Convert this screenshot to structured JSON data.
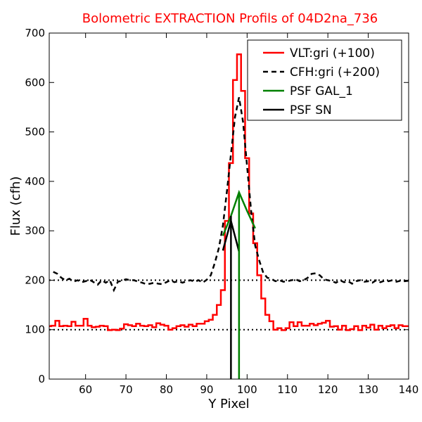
{
  "chart_data": {
    "type": "line",
    "title": "Bolometric EXTRACTION Profils of 04D2na_736",
    "title_color": "#ff0000",
    "xlabel": "Y Pixel",
    "ylabel": "Flux (cfh)",
    "xlim": [
      51,
      140
    ],
    "ylim": [
      0,
      700
    ],
    "xticks": [
      60,
      70,
      80,
      90,
      100,
      110,
      120,
      130,
      140
    ],
    "yticks": [
      0,
      100,
      200,
      300,
      400,
      500,
      600,
      700
    ],
    "grid": false,
    "legend_position": "top-right",
    "reference_lines": [
      {
        "y": 100,
        "style": "dotted",
        "color": "#000000"
      },
      {
        "y": 200,
        "style": "dotted",
        "color": "#000000"
      }
    ],
    "series": [
      {
        "name": "VLT:gri (+100)",
        "color": "#ff0000",
        "style": "steps",
        "x": [
          51,
          52,
          53,
          54,
          55,
          56,
          57,
          58,
          59,
          60,
          61,
          62,
          63,
          64,
          65,
          66,
          67,
          68,
          69,
          70,
          71,
          72,
          73,
          74,
          75,
          76,
          77,
          78,
          79,
          80,
          81,
          82,
          83,
          84,
          85,
          86,
          87,
          88,
          89,
          90,
          91,
          92,
          93,
          94,
          95,
          96,
          97,
          98,
          99,
          100,
          101,
          102,
          103,
          104,
          105,
          106,
          107,
          108,
          109,
          110,
          111,
          112,
          113,
          114,
          115,
          116,
          117,
          118,
          119,
          120,
          121,
          122,
          123,
          124,
          125,
          126,
          127,
          128,
          129,
          130,
          131,
          132,
          133,
          134,
          135,
          136,
          137,
          138,
          139,
          140
        ],
        "y": [
          107,
          108,
          118,
          107,
          108,
          107,
          116,
          108,
          108,
          122,
          108,
          105,
          106,
          108,
          107,
          99,
          100,
          99,
          102,
          111,
          109,
          107,
          112,
          108,
          107,
          109,
          105,
          113,
          110,
          108,
          100,
          103,
          107,
          109,
          106,
          110,
          107,
          112,
          112,
          117,
          120,
          130,
          150,
          180,
          320,
          437,
          605,
          657,
          583,
          447,
          335,
          275,
          210,
          163,
          130,
          117,
          100,
          103,
          99,
          103,
          115,
          107,
          115,
          108,
          108,
          112,
          109,
          112,
          114,
          118,
          106,
          107,
          100,
          108,
          99,
          101,
          107,
          99,
          108,
          104,
          110,
          100,
          108,
          103,
          107,
          109,
          103,
          109,
          107,
          107
        ]
      },
      {
        "name": "CFH:gri (+200)",
        "color": "#000000",
        "style": "dashed",
        "x": [
          52,
          53,
          54,
          55,
          56,
          57,
          58,
          59,
          60,
          61,
          62,
          63,
          64,
          65,
          66,
          67,
          68,
          69,
          70,
          71,
          72,
          73,
          74,
          75,
          76,
          77,
          78,
          79,
          80,
          81,
          82,
          83,
          84,
          85,
          86,
          87,
          88,
          89,
          90,
          91,
          92,
          93,
          94,
          95,
          96,
          97,
          98,
          99,
          100,
          101,
          102,
          103,
          104,
          105,
          106,
          107,
          108,
          109,
          110,
          111,
          112,
          113,
          114,
          115,
          116,
          117,
          118,
          119,
          120,
          121,
          122,
          123,
          124,
          125,
          126,
          127,
          128,
          129,
          130,
          131,
          132,
          133,
          134,
          135,
          136,
          137,
          138,
          139,
          140
        ],
        "y": [
          217,
          213,
          205,
          200,
          203,
          197,
          200,
          196,
          198,
          201,
          196,
          191,
          200,
          195,
          200,
          180,
          197,
          199,
          202,
          200,
          200,
          197,
          195,
          192,
          193,
          195,
          193,
          192,
          196,
          200,
          196,
          198,
          195,
          198,
          200,
          197,
          200,
          195,
          201,
          210,
          235,
          265,
          310,
          380,
          455,
          530,
          570,
          520,
          430,
          340,
          270,
          240,
          215,
          205,
          203,
          198,
          200,
          197,
          198,
          200,
          202,
          198,
          200,
          205,
          213,
          214,
          210,
          202,
          200,
          198,
          195,
          200,
          196,
          198,
          193,
          198,
          200,
          197,
          198,
          195,
          200,
          196,
          199,
          198,
          200,
          197,
          199,
          198,
          199
        ]
      },
      {
        "name": "PSF GAL_1",
        "color": "#008000",
        "style": "solid",
        "x": [
          94,
          96,
          98,
          100,
          102
        ],
        "y": [
          290,
          330,
          378,
          340,
          305
        ]
      },
      {
        "name": "PSF SN",
        "color": "#000000",
        "style": "solid",
        "x": [
          94,
          96,
          98
        ],
        "y": [
          260,
          320,
          258
        ]
      }
    ],
    "vertical_lines": [
      {
        "x": 96,
        "y0": 0,
        "y1": 330,
        "color": "#000000",
        "series": "PSF SN"
      },
      {
        "x": 98,
        "y0": 0,
        "y1": 378,
        "color": "#008000",
        "series": "PSF GAL_1"
      }
    ]
  }
}
